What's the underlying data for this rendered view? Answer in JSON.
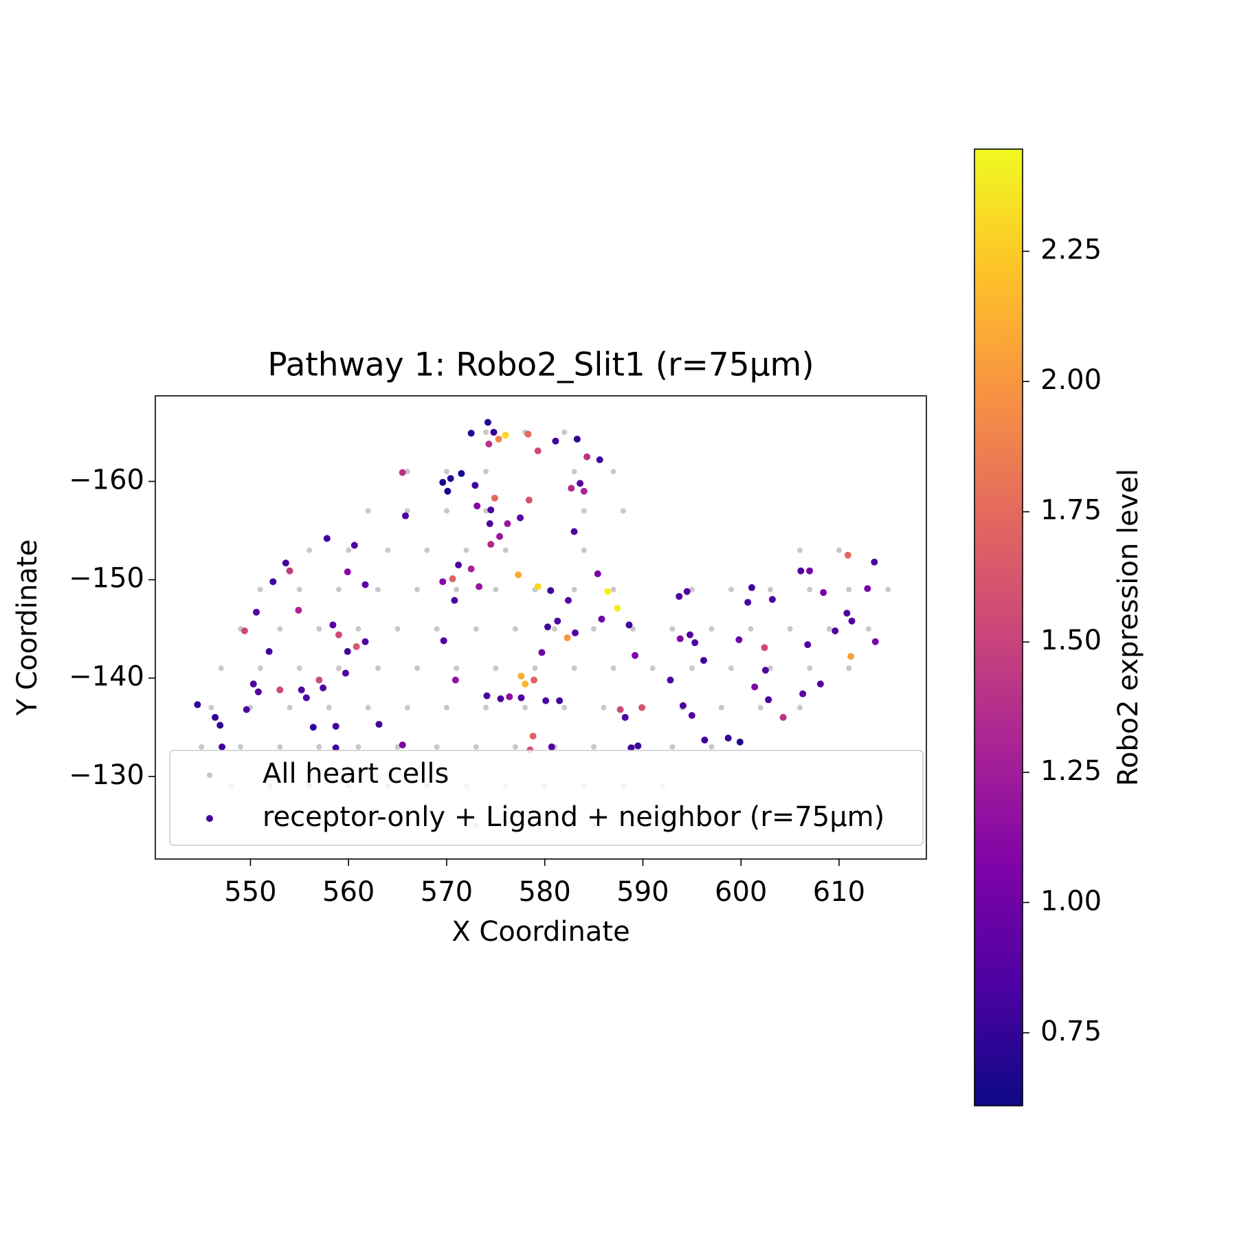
{
  "chart_data": {
    "type": "scatter",
    "title": "Pathway 1: Robo2_Slit1 (r=75µm)",
    "x_label": "X Coordinate",
    "y_label": "Y Coordinate",
    "xlim": [
      540.3,
      618.9
    ],
    "ylim": [
      -121.6,
      -168.7
    ],
    "xticks": [
      550,
      560,
      570,
      580,
      590,
      600,
      610
    ],
    "yticks": [
      {
        "value": -160,
        "label": "−160"
      },
      {
        "value": -150,
        "label": "−150"
      },
      {
        "value": -140,
        "label": "−140"
      },
      {
        "value": -130,
        "label": "−130"
      }
    ],
    "legend": "lower center",
    "colormap": "plasma",
    "colorbar_label": "Robo2 expression level",
    "clim": [
      0.61,
      2.446
    ],
    "cticks": [
      0.75,
      {
        "value": 1,
        "label": "1.00"
      },
      1.25,
      {
        "value": 1.5,
        "label": "1.50"
      },
      1.75,
      {
        "value": 2,
        "label": "2.00"
      },
      2.25
    ],
    "series": [
      {
        "name": "All heart cells",
        "color": "#c8c8c8",
        "x": [
          574,
          578,
          582,
          566,
          570,
          574,
          583,
          587,
          562,
          566,
          570,
          574,
          584,
          588,
          556,
          560,
          564,
          568,
          572,
          576,
          584,
          606,
          610,
          551,
          555,
          559,
          563,
          567,
          571,
          575,
          579,
          583,
          587,
          595,
          599,
          603,
          607,
          611,
          615,
          549,
          553,
          557,
          561,
          565,
          569,
          573,
          577,
          581,
          585,
          589,
          593,
          597,
          601,
          605,
          609,
          613,
          547,
          551,
          555,
          559,
          563,
          567,
          571,
          575,
          579,
          583,
          587,
          591,
          595,
          599,
          603,
          607,
          611,
          546,
          550,
          554,
          558,
          562,
          566,
          570,
          574,
          578,
          582,
          586,
          590,
          594,
          598,
          602,
          606,
          545,
          549,
          553,
          557,
          561,
          565,
          569,
          573,
          577,
          581,
          585,
          589,
          593,
          597,
          548,
          552,
          556,
          560,
          564,
          568,
          572,
          576,
          580,
          584,
          588,
          592,
          565,
          569,
          573,
          577,
          581,
          585,
          589
        ],
        "y": [
          -165,
          -165,
          -165,
          -161,
          -161,
          -161,
          -161,
          -161,
          -157,
          -157,
          -157,
          -157,
          -157,
          -157,
          -153,
          -153,
          -153,
          -153,
          -153,
          -153,
          -153,
          -153,
          -153,
          -149,
          -149,
          -149,
          -149,
          -149,
          -149,
          -149,
          -149,
          -149,
          -149,
          -149,
          -149,
          -149,
          -149,
          -149,
          -149,
          -145,
          -145,
          -145,
          -145,
          -145,
          -145,
          -145,
          -145,
          -145,
          -145,
          -145,
          -145,
          -145,
          -145,
          -145,
          -145,
          -145,
          -141,
          -141,
          -141,
          -141,
          -141,
          -141,
          -141,
          -141,
          -141,
          -141,
          -141,
          -141,
          -141,
          -141,
          -141,
          -141,
          -141,
          -137,
          -137,
          -137,
          -137,
          -137,
          -137,
          -137,
          -137,
          -137,
          -137,
          -137,
          -137,
          -137,
          -137,
          -137,
          -137,
          -133,
          -133,
          -133,
          -133,
          -133,
          -133,
          -133,
          -133,
          -133,
          -133,
          -133,
          -133,
          -133,
          -133,
          -129,
          -129,
          -129,
          -129,
          -129,
          -129,
          -129,
          -129,
          -129,
          -129,
          -129,
          -129,
          -125,
          -125,
          -125,
          -125,
          -125,
          -125,
          -125
        ]
      },
      {
        "name": "receptor-only + Ligand + neighbor (r=75µm)",
        "color": "#41049d",
        "x": [
          574.2,
          574.8,
          575.3,
          576.0,
          574.3,
          572.5,
          578.3,
          579.3,
          581.1,
          583.3,
          584.3,
          585.6,
          565.5,
          569.6,
          570.4,
          571.5,
          570.1,
          572.9,
          574.9,
          573.1,
          574.5,
          578.4,
          582.7,
          583.6,
          584.0,
          565.8,
          576.2,
          574.4,
          577.5,
          583.0,
          575.4,
          574.5,
          557.8,
          560.6,
          553.6,
          554.0,
          552.3,
          559.9,
          561.7,
          569.6,
          570.6,
          572.5,
          573.3,
          571.2,
          577.3,
          579.3,
          580.6,
          585.4,
          586.4,
          587.4,
          585.8,
          582.4,
          581.3,
          580.3,
          570.8,
          550.6,
          554.9,
          549.4,
          558.4,
          559.0,
          560.8,
          561.7,
          559.9,
          551.9,
          569.7,
          582.3,
          583.1,
          588.6,
          579.7,
          589.2,
          593.8,
          594.8,
          595.3,
          596.2,
          599.8,
          602.4,
          606.8,
          607.0,
          606.1,
          608.4,
          610.9,
          613.6,
          612.9,
          610.8,
          611.3,
          609.6,
          611.2,
          613.7,
          601.1,
          603.2,
          600.7,
          593.7,
          594.5,
          602.5,
          601.4,
          602.8,
          606.3,
          608.1,
          604.3,
          598.7,
          599.9,
          596.3,
          592.8,
          594.1,
          595.0,
          589.5,
          588.8,
          587.7,
          588.2,
          589.9,
          577.6,
          578.0,
          578.9,
          576.4,
          574.1,
          575.5,
          577.6,
          580.1,
          581.5,
          578.8,
          580.7,
          578.5,
          570.9,
          557.0,
          559.7,
          550.3,
          550.8,
          553.0,
          555.2,
          555.7,
          557.4,
          549.6,
          544.6,
          546.4,
          546.9,
          556.4,
          558.7,
          563.1,
          565.5,
          547.1,
          558.7
        ],
        "y": [
          -166.0,
          -165.0,
          -164.3,
          -164.7,
          -163.8,
          -164.9,
          -164.8,
          -163.1,
          -164.1,
          -164.3,
          -162.5,
          -162.2,
          -160.9,
          -159.9,
          -160.3,
          -160.8,
          -159.0,
          -159.6,
          -158.3,
          -157.5,
          -157.1,
          -158.1,
          -159.3,
          -159.8,
          -159.0,
          -156.5,
          -155.7,
          -155.7,
          -156.3,
          -154.9,
          -154.4,
          -153.6,
          -154.2,
          -153.5,
          -151.7,
          -150.9,
          -149.8,
          -150.8,
          -149.5,
          -149.8,
          -150.1,
          -151.1,
          -149.3,
          -151.5,
          -150.5,
          -149.3,
          -148.9,
          -150.6,
          -148.8,
          -147.1,
          -146.0,
          -147.9,
          -145.8,
          -145.2,
          -147.9,
          -146.7,
          -146.9,
          -144.8,
          -145.4,
          -144.4,
          -143.2,
          -143.7,
          -142.7,
          -142.7,
          -143.8,
          -144.1,
          -144.6,
          -145.4,
          -142.6,
          -142.3,
          -144.0,
          -144.4,
          -143.6,
          -141.8,
          -143.9,
          -143.1,
          -143.4,
          -150.9,
          -150.9,
          -148.7,
          -152.5,
          -151.8,
          -149.1,
          -146.6,
          -145.8,
          -144.8,
          -142.2,
          -143.7,
          -149.2,
          -148.0,
          -147.7,
          -148.3,
          -148.8,
          -140.8,
          -139.1,
          -137.8,
          -138.4,
          -139.4,
          -136.0,
          -133.9,
          -133.5,
          -133.7,
          -139.8,
          -137.2,
          -136.2,
          -133.1,
          -132.9,
          -136.8,
          -136.0,
          -137.0,
          -140.2,
          -139.4,
          -139.8,
          -138.1,
          -138.2,
          -137.9,
          -138.0,
          -137.7,
          -137.7,
          -134.1,
          -133.0,
          -132.7,
          -139.8,
          -139.8,
          -140.5,
          -139.4,
          -138.6,
          -138.8,
          -138.8,
          -138.0,
          -139.0,
          -136.8,
          -137.3,
          -136.0,
          -135.2,
          -135.0,
          -135.1,
          -135.3,
          -133.2,
          -133.0,
          -132.9
        ],
        "values": [
          0.7,
          0.75,
          1.9,
          2.3,
          1.4,
          0.7,
          1.75,
          1.55,
          0.8,
          0.75,
          1.4,
          0.8,
          1.4,
          0.65,
          0.7,
          0.65,
          0.65,
          0.8,
          1.75,
          1.1,
          0.85,
          1.6,
          1.35,
          0.9,
          1.3,
          0.85,
          1.2,
          0.85,
          0.9,
          0.85,
          1.2,
          1.35,
          0.8,
          0.85,
          0.8,
          1.45,
          0.8,
          1.1,
          0.9,
          1.1,
          1.7,
          1.3,
          1.2,
          0.85,
          2.1,
          2.3,
          0.8,
          1.05,
          2.4,
          2.4,
          1.0,
          0.9,
          0.85,
          0.8,
          0.85,
          0.9,
          1.3,
          1.55,
          0.9,
          1.55,
          1.65,
          0.85,
          0.8,
          0.8,
          0.85,
          2.0,
          0.85,
          0.8,
          1.0,
          1.1,
          1.1,
          0.85,
          0.85,
          0.8,
          1.0,
          1.55,
          0.85,
          1.05,
          0.85,
          1.05,
          1.75,
          0.85,
          1.05,
          0.85,
          0.85,
          0.85,
          2.05,
          1.05,
          0.8,
          0.85,
          0.85,
          0.85,
          0.85,
          0.85,
          1.05,
          0.85,
          0.9,
          0.9,
          1.4,
          0.75,
          0.7,
          0.8,
          0.85,
          0.85,
          0.85,
          0.8,
          0.8,
          1.55,
          0.85,
          1.6,
          2.1,
          2.15,
          1.7,
          1.15,
          0.85,
          0.85,
          0.85,
          0.85,
          0.8,
          1.7,
          0.85,
          1.6,
          1.2,
          1.55,
          0.85,
          0.85,
          0.85,
          1.55,
          0.85,
          0.85,
          0.85,
          0.85,
          0.75,
          0.75,
          0.75,
          0.75,
          0.8,
          0.8,
          1.05,
          0.8,
          0.8
        ]
      }
    ]
  }
}
